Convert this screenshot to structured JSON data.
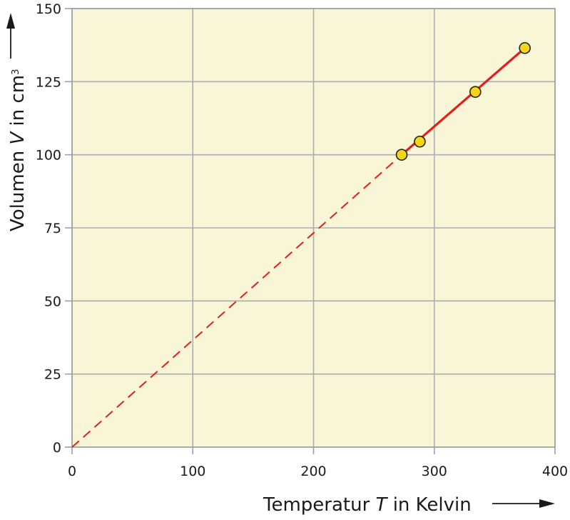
{
  "chart_data": {
    "type": "scatter",
    "title": "",
    "xlabel": {
      "prefix": "Temperatur ",
      "symbol": "T",
      "suffix": " in Kelvin"
    },
    "ylabel": {
      "prefix": "Volumen ",
      "symbol": "V",
      "suffix": " in cm",
      "superscript": "3"
    },
    "xlim": [
      0,
      400
    ],
    "ylim": [
      0,
      150
    ],
    "x_ticks": [
      "0",
      "100",
      "200",
      "300",
      "400"
    ],
    "y_ticks": [
      "0",
      "25",
      "50",
      "75",
      "100",
      "125",
      "150"
    ],
    "grid": true,
    "points": [
      {
        "x": 273,
        "y": 100
      },
      {
        "x": 288,
        "y": 104.5
      },
      {
        "x": 334,
        "y": 121.5
      },
      {
        "x": 375,
        "y": 136.5
      }
    ],
    "fit_line": {
      "solid_from": {
        "x": 273,
        "y": 100
      },
      "solid_to": {
        "x": 375,
        "y": 136.5
      },
      "dashed_from": {
        "x": 0,
        "y": 0
      },
      "dashed_to": {
        "x": 273,
        "y": 100
      }
    },
    "colors": {
      "plot_background": "#f8f6d6",
      "grid": "#a9aeb3",
      "axis": "#9aa0a6",
      "line": "#e0201c",
      "marker_fill": "#f6d417",
      "marker_stroke": "#222222"
    }
  }
}
